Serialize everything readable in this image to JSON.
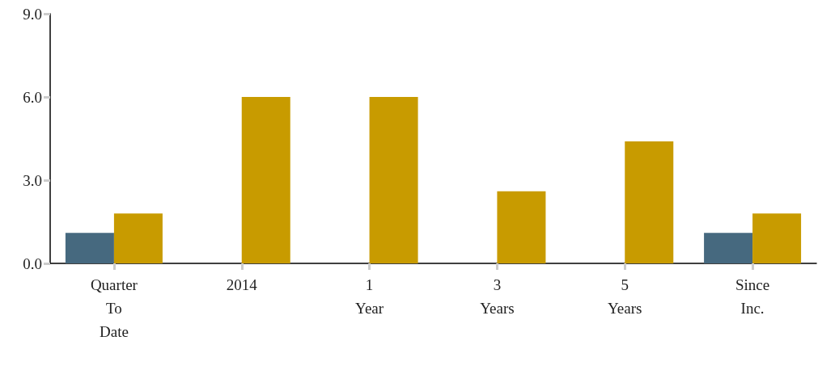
{
  "chart_data": {
    "type": "bar",
    "categories": [
      "Quarter\nTo\nDate",
      "2014",
      "1\nYear",
      "3\nYears",
      "5\nYears",
      "Since\nInc."
    ],
    "series": [
      {
        "color": "#46697f",
        "values": [
          1.1,
          null,
          null,
          null,
          null,
          1.1
        ]
      },
      {
        "color": "#c89b00",
        "values": [
          1.8,
          6.0,
          6.0,
          2.6,
          4.4,
          1.8
        ]
      }
    ],
    "ylim": [
      0,
      9
    ],
    "yticks": [
      {
        "value": 0,
        "label": "0.0"
      },
      {
        "value": 3,
        "label": "3.0"
      },
      {
        "value": 6,
        "label": "6.0"
      },
      {
        "value": 9,
        "label": "9.0"
      }
    ],
    "grid": false
  }
}
